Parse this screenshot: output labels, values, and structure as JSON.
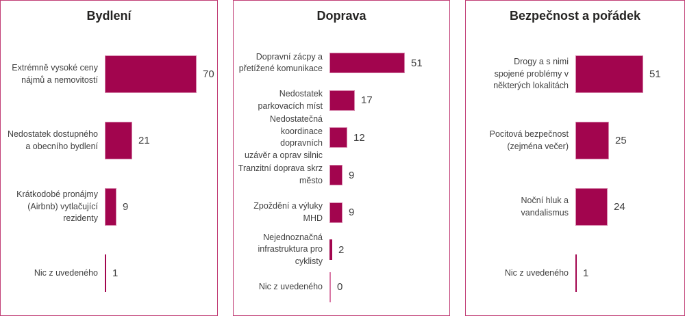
{
  "colors": {
    "background": "#FFFFFF",
    "bar": "#A2054E",
    "bar_border": "#D687AC",
    "zero_bar": "#D978A5",
    "panel_border": "#C13D75",
    "title_text": "#252423",
    "label_text": "#404040",
    "value_text": "#404040"
  },
  "chart_data": [
    {
      "type": "bar",
      "orientation": "horizontal",
      "title": "Bydlení",
      "categories": [
        "Extrémně vysoké ceny\nnájmů a nemovitostí",
        "Nedostatek dostupného\na obecního bydlení",
        "Krátkodobé pronájmy\n(Airbnb) vytlačující\nrezidenty",
        "Nic z uvedeného"
      ],
      "values": [
        70,
        21,
        9,
        1
      ],
      "xlim": [
        0,
        70
      ],
      "value_labels": true,
      "grid": false,
      "legend": false
    },
    {
      "type": "bar",
      "orientation": "horizontal",
      "title": "Doprava",
      "categories": [
        "Dopravní zácpy a\npřetížené komunikace",
        "Nedostatek\nparkovacích míst",
        "Nedostatečná\nkoordinace dopravních\nuzávěr a oprav silnic",
        "Tranzitní doprava skrz\nměsto",
        "Zpoždění a výluky\nMHD",
        "Nejednoznačná\ninfrastruktura pro\ncyklisty",
        "Nic z uvedeného"
      ],
      "values": [
        51,
        17,
        12,
        9,
        9,
        2,
        0
      ],
      "xlim": [
        0,
        51
      ],
      "value_labels": true,
      "grid": false,
      "legend": false
    },
    {
      "type": "bar",
      "orientation": "horizontal",
      "title": "Bezpečnost a pořádek",
      "categories": [
        "Drogy a s nimi\nspojené problémy v\nněkterých lokalitách",
        "Pocitová bezpečnost\n(zejména večer)",
        "Noční hluk a\nvandalismus",
        "Nic z uvedeného"
      ],
      "values": [
        51,
        25,
        24,
        1
      ],
      "xlim": [
        0,
        51
      ],
      "value_labels": true,
      "grid": false,
      "legend": false
    }
  ]
}
